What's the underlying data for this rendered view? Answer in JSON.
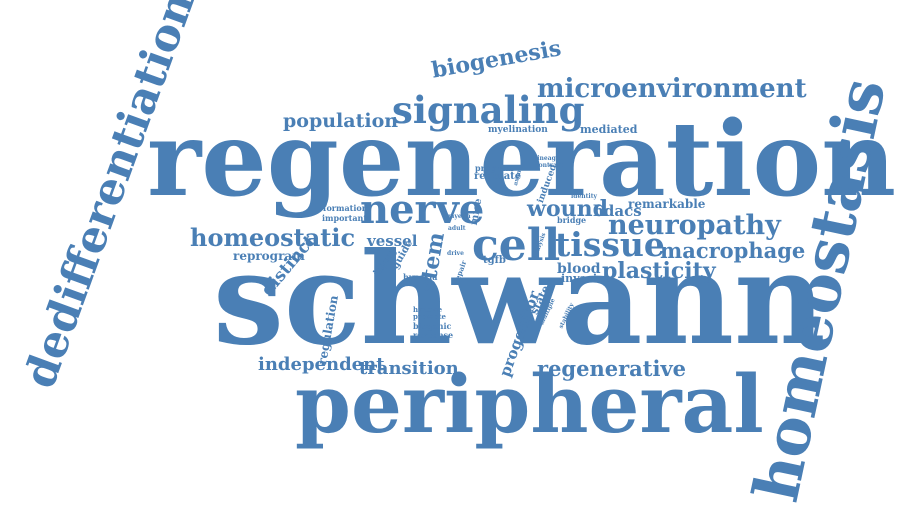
{
  "color": "#4a7fb5",
  "words": [
    {
      "text": "schwann"
    },
    {
      "text": "regeneration"
    },
    {
      "text": "peripheral"
    },
    {
      "text": "homeostasis"
    },
    {
      "text": "dedifferentiation"
    },
    {
      "text": "signaling"
    },
    {
      "text": "cell"
    },
    {
      "text": "nerve"
    },
    {
      "text": "microenvironment"
    },
    {
      "text": "biogenesis"
    },
    {
      "text": "population"
    },
    {
      "text": "neuropathy"
    },
    {
      "text": "tissue"
    },
    {
      "text": "homeostatic"
    },
    {
      "text": "plasticity"
    },
    {
      "text": "macrophage"
    },
    {
      "text": "regenerative"
    },
    {
      "text": "independent"
    },
    {
      "text": "transition"
    },
    {
      "text": "wound"
    },
    {
      "text": "stem"
    },
    {
      "text": "distinct"
    },
    {
      "text": "vessel"
    },
    {
      "text": "hdacs"
    },
    {
      "text": "remarkable"
    },
    {
      "text": "reprogram"
    },
    {
      "text": "blood"
    },
    {
      "text": "invasive"
    },
    {
      "text": "regulation"
    },
    {
      "text": "progenitor"
    },
    {
      "text": "mediated"
    },
    {
      "text": "myelination"
    },
    {
      "text": "program"
    },
    {
      "text": "regulate"
    },
    {
      "text": "formation"
    },
    {
      "text": "important"
    },
    {
      "text": "injury"
    },
    {
      "text": "guide"
    },
    {
      "text": "hypoxia"
    },
    {
      "text": "histone"
    },
    {
      "text": "promote"
    },
    {
      "text": "biogenic"
    },
    {
      "text": "response"
    },
    {
      "text": "induced"
    },
    {
      "text": "lineage"
    },
    {
      "text": "contrast"
    },
    {
      "text": "identity"
    },
    {
      "text": "bridge"
    },
    {
      "text": "tgfb"
    },
    {
      "text": "state"
    },
    {
      "text": "myelin"
    },
    {
      "text": "adult"
    },
    {
      "text": "drive"
    },
    {
      "text": "repair"
    },
    {
      "text": "analysis"
    },
    {
      "text": "multiple"
    },
    {
      "text": "stability"
    },
    {
      "text": "axon"
    },
    {
      "text": "mice"
    }
  ]
}
